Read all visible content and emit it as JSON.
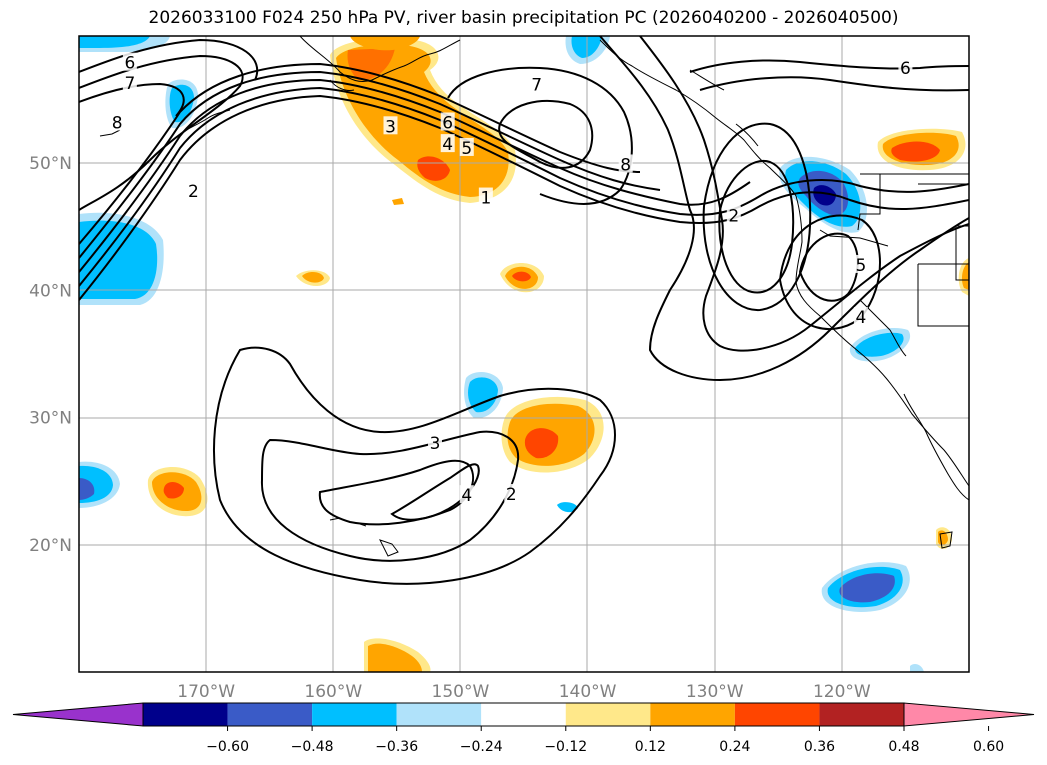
{
  "title": "2026033100 F024 250 hPa PV, river basin precipitation PC (2026040200 - 2026040500)",
  "map": {
    "projection": "plate-carree",
    "lon_range": [
      -180,
      -110
    ],
    "lat_range": [
      10,
      60
    ],
    "lat_ticks": [
      {
        "value": 50,
        "label": "50°N"
      },
      {
        "value": 40,
        "label": "40°N"
      },
      {
        "value": 30,
        "label": "30°N"
      },
      {
        "value": 20,
        "label": "20°N"
      }
    ],
    "lon_ticks": [
      {
        "value": -170,
        "label": "170°W"
      },
      {
        "value": -160,
        "label": "160°W"
      },
      {
        "value": -150,
        "label": "150°W"
      },
      {
        "value": -140,
        "label": "140°W"
      },
      {
        "value": -130,
        "label": "130°W"
      },
      {
        "value": -120,
        "label": "120°W"
      }
    ],
    "contour_labels": [
      {
        "text": "6",
        "lon": -176,
        "lat": 57.9
      },
      {
        "text": "7",
        "lon": -176,
        "lat": 56.3
      },
      {
        "text": "8",
        "lon": -177,
        "lat": 53.2
      },
      {
        "text": "2",
        "lon": -171,
        "lat": 47.8
      },
      {
        "text": "3",
        "lon": -155.5,
        "lat": 52.9
      },
      {
        "text": "6",
        "lon": -151,
        "lat": 53.2
      },
      {
        "text": "4",
        "lon": -151,
        "lat": 51.5
      },
      {
        "text": "5",
        "lon": -149.5,
        "lat": 51.2
      },
      {
        "text": "1",
        "lon": -148,
        "lat": 47.3
      },
      {
        "text": "7",
        "lon": -144,
        "lat": 56.2
      },
      {
        "text": "8",
        "lon": -137,
        "lat": 49.9
      },
      {
        "text": "6",
        "lon": -115,
        "lat": 57.5
      },
      {
        "text": "2",
        "lon": -128.5,
        "lat": 45.9
      },
      {
        "text": "5",
        "lon": -118.5,
        "lat": 42.0
      },
      {
        "text": "4",
        "lon": -118.5,
        "lat": 37.9
      },
      {
        "text": "3",
        "lon": -152,
        "lat": 28.0
      },
      {
        "text": "4",
        "lon": -149.5,
        "lat": 23.9
      },
      {
        "text": "2",
        "lon": -146,
        "lat": 24.0
      }
    ]
  },
  "colorbar": {
    "colors": [
      "#9932cc",
      "#00008b",
      "#3a5bc7",
      "#00bfff",
      "#b0e2fa",
      "#ffffff",
      "#ffe88a",
      "#ffa500",
      "#ff4500",
      "#b22222",
      "#ff88a8"
    ],
    "tick_labels": [
      "−0.60",
      "−0.48",
      "−0.36",
      "−0.24",
      "−0.12",
      "0.12",
      "0.24",
      "0.36",
      "0.48",
      "0.60"
    ]
  }
}
